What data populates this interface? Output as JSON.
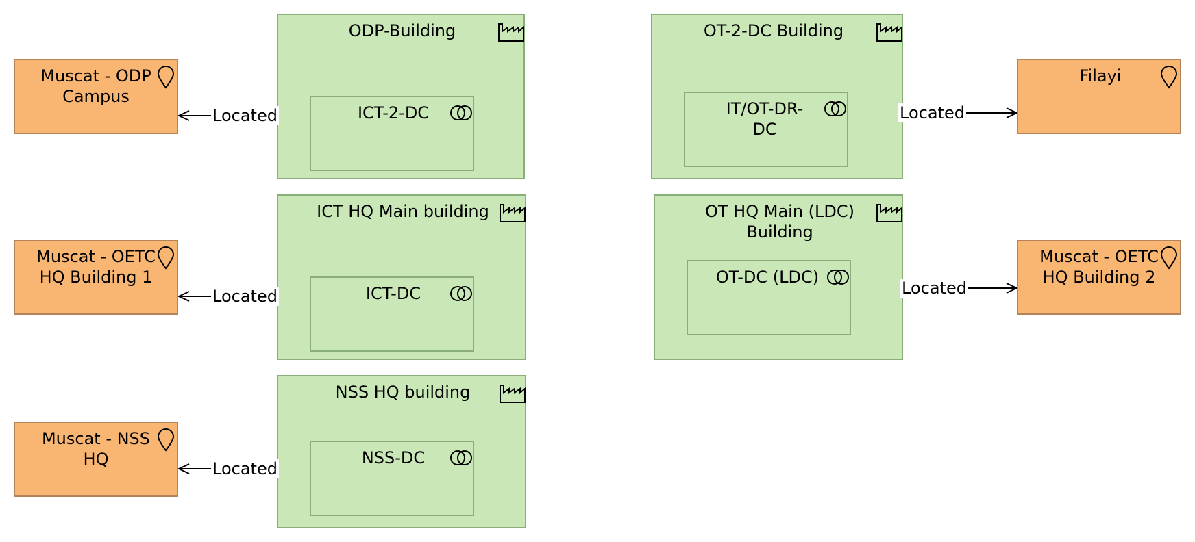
{
  "facilities": {
    "odp_building": "ODP-Building",
    "ict_hq_main": "ICT HQ Main building",
    "nss_hq": "NSS HQ building",
    "ot2dc_building": "OT-2-DC Building",
    "ot_hq_main": "OT HQ Main (LDC)\nBuilding"
  },
  "equipment": {
    "ict_2_dc": "ICT-2-DC",
    "ict_dc": "ICT-DC",
    "nss_dc": "NSS-DC",
    "it_ot_dr_dc": "IT/OT-DR-\nDC",
    "ot_dc_ldc": "OT-DC (LDC)"
  },
  "locations": {
    "muscat_odp": "Muscat - ODP\nCampus",
    "muscat_oetc_hq1": "Muscat - OETC\nHQ Building 1",
    "muscat_nss": "Muscat - NSS\nHQ",
    "filayi": "Filayi",
    "muscat_oetc_hq2": "Muscat - OETC\nHQ Building 2"
  },
  "relations": {
    "r1": "Located",
    "r2": "Located",
    "r3": "Located",
    "r4": "Located",
    "r5": "Located"
  },
  "colors": {
    "facility_fill": "#c9e7b7",
    "location_fill": "#f9b572"
  },
  "icons": {
    "facility": "factory-icon",
    "equipment": "equipment-gears-icon",
    "location": "location-pin-icon"
  }
}
